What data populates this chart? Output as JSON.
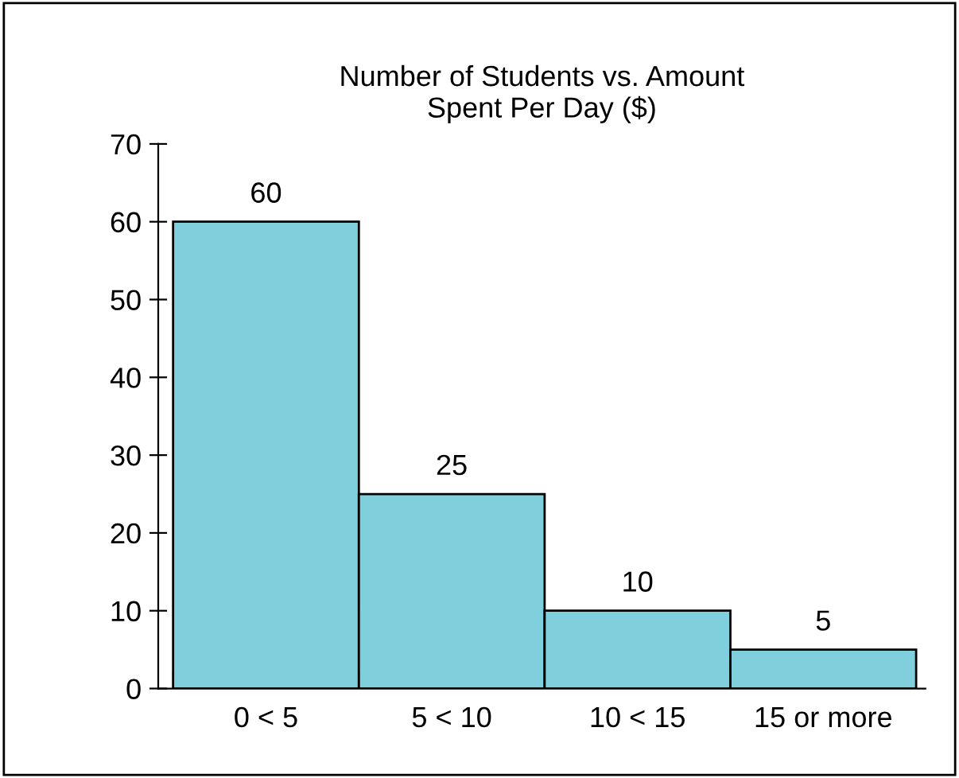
{
  "chart_data": {
    "type": "bar",
    "title": "Number of Students vs. Amount\nSpent Per Day ($)",
    "categories": [
      "0 < 5",
      "5 < 10",
      "10 < 15",
      "15 or more"
    ],
    "values": [
      60,
      25,
      10,
      5
    ],
    "color": "#7fd0dc",
    "ylim": [
      0,
      70
    ],
    "yticks": [
      0,
      10,
      20,
      30,
      40,
      50,
      60,
      70
    ],
    "data_labels": true
  }
}
